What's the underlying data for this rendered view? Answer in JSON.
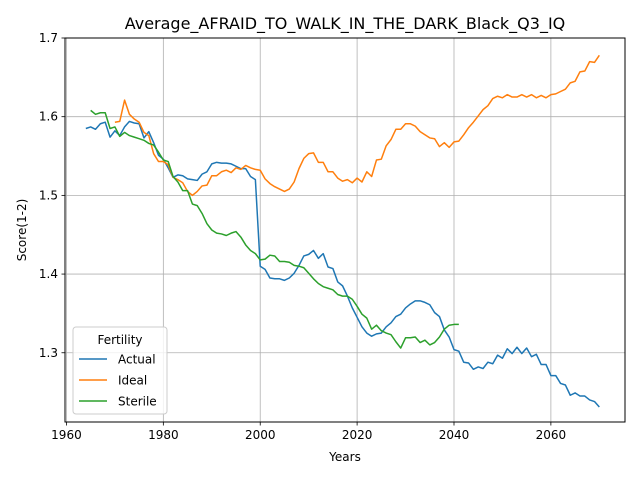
{
  "chart_data": {
    "type": "line",
    "title": "Average_AFRAID_TO_WALK_IN_THE_DARK_Black_Q3_IQ",
    "xlabel": "Years",
    "ylabel": "Score(1-2)",
    "xlim": [
      1959.7,
      2075.3
    ],
    "ylim": [
      1.212,
      1.7
    ],
    "xticks": [
      1960,
      1980,
      2000,
      2020,
      2040,
      2060
    ],
    "yticks": [
      1.3,
      1.4,
      1.5,
      1.6,
      1.7
    ],
    "grid": true,
    "legend": {
      "title": "Fertility",
      "placement": "lower-left"
    },
    "colors": {
      "Actual": "#1f77b4",
      "Ideal": "#ff7f0e",
      "Sterile": "#2ca02c"
    },
    "series": [
      {
        "name": "Actual",
        "x": [
          1964,
          1965,
          1966,
          1967,
          1968,
          1969,
          1970,
          1971,
          1972,
          1973,
          1974,
          1975,
          1976,
          1977,
          1978,
          1979,
          1980,
          1981,
          1982,
          1983,
          1984,
          1985,
          1986,
          1987,
          1988,
          1989,
          1990,
          1991,
          1992,
          1993,
          1994,
          1995,
          1996,
          1997,
          1998,
          1999,
          2000,
          2001,
          2002,
          2003,
          2004,
          2005,
          2006,
          2007,
          2008,
          2009,
          2010,
          2011,
          2012,
          2013,
          2014,
          2015,
          2016,
          2017,
          2018,
          2019,
          2020,
          2021,
          2022,
          2023,
          2024,
          2025,
          2026,
          2027,
          2028,
          2029,
          2030,
          2031,
          2032,
          2033,
          2034,
          2035,
          2036,
          2037,
          2038,
          2039,
          2040,
          2041,
          2042,
          2043,
          2044,
          2045,
          2046,
          2047,
          2048,
          2049,
          2050,
          2051,
          2052,
          2053,
          2054,
          2055,
          2056,
          2057,
          2058,
          2059,
          2060,
          2061,
          2062,
          2063,
          2064,
          2065,
          2066,
          2067,
          2068,
          2069,
          2070
        ],
        "y": [
          1.585,
          1.587,
          1.584,
          1.591,
          1.593,
          1.574,
          1.582,
          1.576,
          1.587,
          1.594,
          1.592,
          1.591,
          1.573,
          1.581,
          1.567,
          1.551,
          1.546,
          1.535,
          1.523,
          1.526,
          1.525,
          1.521,
          1.52,
          1.519,
          1.527,
          1.53,
          1.54,
          1.542,
          1.541,
          1.541,
          1.54,
          1.537,
          1.534,
          1.534,
          1.524,
          1.52,
          1.41,
          1.406,
          1.395,
          1.394,
          1.394,
          1.392,
          1.395,
          1.401,
          1.411,
          1.423,
          1.425,
          1.43,
          1.42,
          1.426,
          1.409,
          1.407,
          1.39,
          1.385,
          1.372,
          1.357,
          1.345,
          1.333,
          1.325,
          1.321,
          1.324,
          1.325,
          1.333,
          1.338,
          1.346,
          1.349,
          1.357,
          1.362,
          1.366,
          1.366,
          1.364,
          1.361,
          1.351,
          1.346,
          1.329,
          1.32,
          1.304,
          1.302,
          1.288,
          1.287,
          1.279,
          1.282,
          1.28,
          1.288,
          1.286,
          1.297,
          1.293,
          1.305,
          1.299,
          1.307,
          1.299,
          1.306,
          1.295,
          1.298,
          1.285,
          1.285,
          1.271,
          1.271,
          1.261,
          1.259,
          1.246,
          1.249,
          1.245,
          1.245,
          1.24,
          1.238,
          1.231
        ]
      },
      {
        "name": "Ideal",
        "x": [
          1970,
          1971,
          1972,
          1973,
          1974,
          1975,
          1976,
          1977,
          1978,
          1979,
          1980,
          1981,
          1982,
          1983,
          1984,
          1985,
          1986,
          1987,
          1988,
          1989,
          1990,
          1991,
          1992,
          1993,
          1994,
          1995,
          1996,
          1997,
          1998,
          1999,
          2000,
          2001,
          2002,
          2003,
          2004,
          2005,
          2006,
          2007,
          2008,
          2009,
          2010,
          2011,
          2012,
          2013,
          2014,
          2015,
          2016,
          2017,
          2018,
          2019,
          2020,
          2021,
          2022,
          2023,
          2024,
          2025,
          2026,
          2027,
          2028,
          2029,
          2030,
          2031,
          2032,
          2033,
          2034,
          2035,
          2036,
          2037,
          2038,
          2039,
          2040,
          2041,
          2042,
          2043,
          2044,
          2045,
          2046,
          2047,
          2048,
          2049,
          2050,
          2051,
          2052,
          2053,
          2054,
          2055,
          2056,
          2057,
          2058,
          2059,
          2060,
          2061,
          2062,
          2063,
          2064,
          2065,
          2066,
          2067,
          2068,
          2069,
          2070
        ],
        "y": [
          1.593,
          1.594,
          1.621,
          1.603,
          1.597,
          1.593,
          1.58,
          1.576,
          1.553,
          1.543,
          1.543,
          1.539,
          1.523,
          1.52,
          1.516,
          1.505,
          1.5,
          1.505,
          1.512,
          1.513,
          1.525,
          1.525,
          1.53,
          1.532,
          1.529,
          1.535,
          1.533,
          1.538,
          1.535,
          1.533,
          1.532,
          1.521,
          1.515,
          1.511,
          1.508,
          1.505,
          1.508,
          1.517,
          1.534,
          1.547,
          1.553,
          1.554,
          1.542,
          1.542,
          1.53,
          1.53,
          1.522,
          1.518,
          1.52,
          1.516,
          1.522,
          1.517,
          1.53,
          1.524,
          1.545,
          1.546,
          1.563,
          1.571,
          1.584,
          1.584,
          1.591,
          1.591,
          1.588,
          1.581,
          1.577,
          1.573,
          1.572,
          1.562,
          1.567,
          1.561,
          1.568,
          1.569,
          1.577,
          1.586,
          1.593,
          1.601,
          1.609,
          1.614,
          1.623,
          1.626,
          1.624,
          1.628,
          1.625,
          1.625,
          1.628,
          1.625,
          1.628,
          1.624,
          1.627,
          1.624,
          1.628,
          1.629,
          1.632,
          1.635,
          1.643,
          1.645,
          1.657,
          1.658,
          1.67,
          1.669,
          1.678
        ]
      },
      {
        "name": "Sterile",
        "x": [
          1965,
          1966,
          1967,
          1968,
          1969,
          1970,
          1971,
          1972,
          1973,
          1974,
          1975,
          1976,
          1977,
          1978,
          1979,
          1980,
          1981,
          1982,
          1983,
          1984,
          1985,
          1986,
          1987,
          1988,
          1989,
          1990,
          1991,
          1992,
          1993,
          1994,
          1995,
          1996,
          1997,
          1998,
          1999,
          2000,
          2001,
          2002,
          2003,
          2004,
          2005,
          2006,
          2007,
          2008,
          2009,
          2010,
          2011,
          2012,
          2013,
          2014,
          2015,
          2016,
          2017,
          2018,
          2019,
          2020,
          2021,
          2022,
          2023,
          2024,
          2025,
          2026,
          2027,
          2028,
          2029,
          2030,
          2031,
          2032,
          2033,
          2034,
          2035,
          2036,
          2037,
          2038,
          2039,
          2040,
          2041
        ],
        "y": [
          1.608,
          1.603,
          1.605,
          1.605,
          1.585,
          1.587,
          1.575,
          1.58,
          1.576,
          1.574,
          1.572,
          1.57,
          1.566,
          1.564,
          1.555,
          1.545,
          1.543,
          1.524,
          1.517,
          1.506,
          1.506,
          1.489,
          1.487,
          1.477,
          1.464,
          1.456,
          1.452,
          1.451,
          1.449,
          1.452,
          1.454,
          1.447,
          1.437,
          1.43,
          1.426,
          1.418,
          1.419,
          1.424,
          1.423,
          1.416,
          1.416,
          1.415,
          1.411,
          1.41,
          1.408,
          1.401,
          1.394,
          1.388,
          1.384,
          1.382,
          1.38,
          1.374,
          1.372,
          1.372,
          1.368,
          1.359,
          1.349,
          1.344,
          1.33,
          1.335,
          1.328,
          1.325,
          1.323,
          1.314,
          1.306,
          1.319,
          1.319,
          1.32,
          1.313,
          1.316,
          1.31,
          1.313,
          1.32,
          1.33,
          1.335,
          1.336,
          1.336
        ]
      }
    ]
  }
}
